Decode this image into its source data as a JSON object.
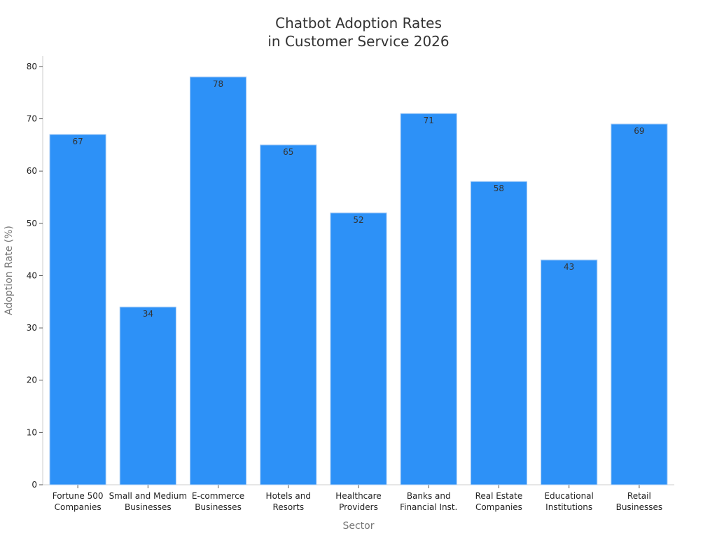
{
  "chart_data": {
    "type": "bar",
    "title_lines": [
      "Chatbot Adoption Rates",
      "in Customer Service 2026"
    ],
    "xlabel": "Sector",
    "ylabel": "Adoption Rate (%)",
    "ylim": [
      0,
      82
    ],
    "yticks": [
      0,
      10,
      20,
      30,
      40,
      50,
      60,
      70,
      80
    ],
    "grid": false,
    "categories": [
      [
        "Fortune 500",
        "Companies"
      ],
      [
        "Small and Medium",
        "Businesses"
      ],
      [
        "E-commerce",
        "Businesses"
      ],
      [
        "Hotels and",
        "Resorts"
      ],
      [
        "Healthcare",
        "Providers"
      ],
      [
        "Banks and",
        "Financial Inst."
      ],
      [
        "Real Estate",
        "Companies"
      ],
      [
        "Educational",
        "Institutions"
      ],
      [
        "Retail",
        "Businesses"
      ]
    ],
    "values": [
      67,
      34,
      78,
      65,
      52,
      71,
      58,
      43,
      69
    ],
    "colors": {
      "bar": "#2d91f7",
      "bar_edge": "#a9cdf5",
      "axis": "#cccccc",
      "text": "#222222"
    }
  }
}
